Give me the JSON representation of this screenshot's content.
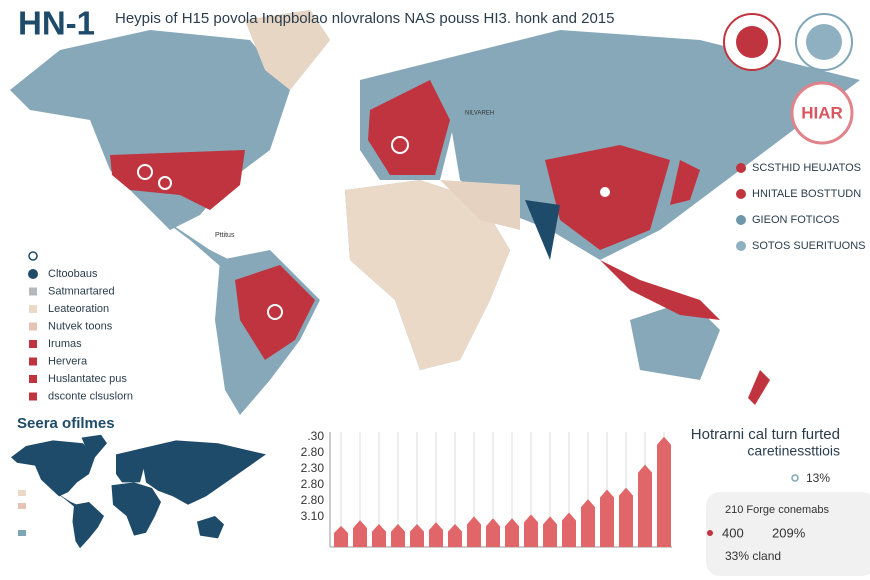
{
  "header": {
    "title": "HN-1",
    "subtitle": "Heypis of H15 povola Inqpbolao nlovralons NAS pouss HI3. honk and 2015"
  },
  "badge": {
    "label": "HIAR"
  },
  "map": {
    "label": "NILVAREH",
    "small_label": "Pttitus"
  },
  "left_legend": [
    {
      "label": "Cltoobaus",
      "color": "#1f4b6a"
    },
    {
      "label": "Satmnartared",
      "color": "#b5b9bb"
    },
    {
      "label": "Leateoration",
      "color": "#ead9c6"
    },
    {
      "label": "Nutvek toons",
      "color": "#e6c3b4"
    },
    {
      "label": "Irumas",
      "color": "#c0343f"
    },
    {
      "label": "Hervera",
      "color": "#c0343f"
    },
    {
      "label": "Huslantatec pus",
      "color": "#c0343f"
    },
    {
      "label": "dsconte clsuslorn",
      "color": "#c0343f"
    }
  ],
  "right_legend": [
    {
      "label": "SCSTHID HEUJATOS",
      "color": "#c0343f"
    },
    {
      "label": "HNITALE BOSTTUDN",
      "color": "#c0343f"
    },
    {
      "label": "GIEON FOTICOS",
      "color": "#6f97ab"
    },
    {
      "label": "SOTOS SUERITUONS",
      "color": "#8fb0c0"
    }
  ],
  "inset": {
    "title": "Seera ofilmes"
  },
  "bar_chart": {
    "type": "bar",
    "color": "#e0666a",
    "ylim": [
      0,
      120
    ],
    "y_labels": [
      ".30",
      "2.80",
      "2.30",
      "2.80",
      "2.80",
      "3.10"
    ],
    "values": [
      22,
      28,
      24,
      24,
      24,
      26,
      24,
      32,
      30,
      30,
      34,
      32,
      36,
      50,
      60,
      62,
      86,
      115
    ]
  },
  "stats": {
    "title": "Hotrarni cal turn furted",
    "subtitle": "caretinessttiois",
    "pct": "13%",
    "line1": "210 Forge conemabs",
    "num": "400",
    "pct2": "209%",
    "line2": "33% cland"
  }
}
